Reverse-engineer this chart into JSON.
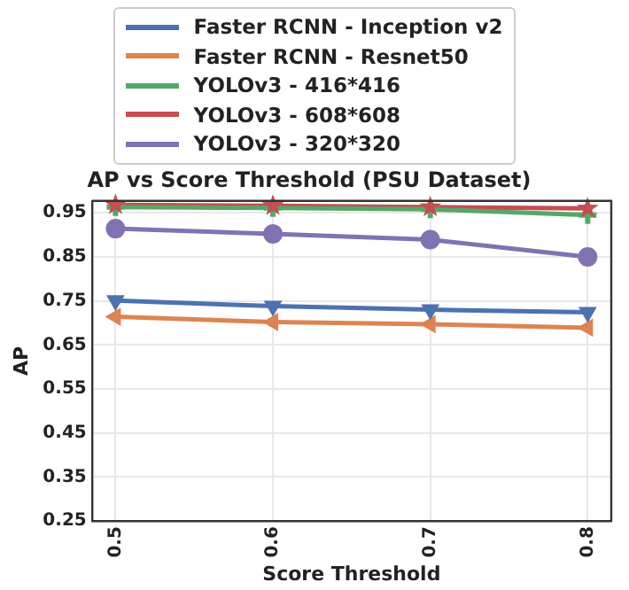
{
  "chart_data": {
    "type": "line",
    "title": "AP vs Score Threshold (PSU Dataset)",
    "xlabel": "Score Threshold",
    "ylabel": "AP",
    "x": [
      0.5,
      0.6,
      0.7,
      0.8
    ],
    "series": [
      {
        "name": "Faster RCNN - Inception v2",
        "color": "#4c72b0",
        "marker": "triangle",
        "values": [
          0.751,
          0.738,
          0.73,
          0.724
        ]
      },
      {
        "name": "Faster RCNN - Resnet50",
        "color": "#dd8452",
        "marker": "triangle",
        "values": [
          0.714,
          0.702,
          0.697,
          0.689
        ]
      },
      {
        "name": "YOLOv3 - 416*416",
        "color": "#55a868",
        "marker": "cross",
        "values": [
          0.963,
          0.961,
          0.958,
          0.945
        ]
      },
      {
        "name": "YOLOv3 - 608*608",
        "color": "#c44e52",
        "marker": "star",
        "values": [
          0.968,
          0.966,
          0.963,
          0.96
        ]
      },
      {
        "name": "YOLOv3 - 320*320",
        "color": "#8172b3",
        "marker": "circle",
        "values": [
          0.914,
          0.902,
          0.889,
          0.85
        ]
      }
    ],
    "xlim": [
      0.485,
      0.815
    ],
    "xticks": [
      0.5,
      0.6,
      0.7,
      0.8
    ],
    "ylim": [
      0.25,
      0.977
    ],
    "yticks": [
      0.25,
      0.35,
      0.45,
      0.55,
      0.65,
      0.75,
      0.85,
      0.95
    ],
    "grid": true,
    "legend": "top",
    "line_style": "solid"
  }
}
